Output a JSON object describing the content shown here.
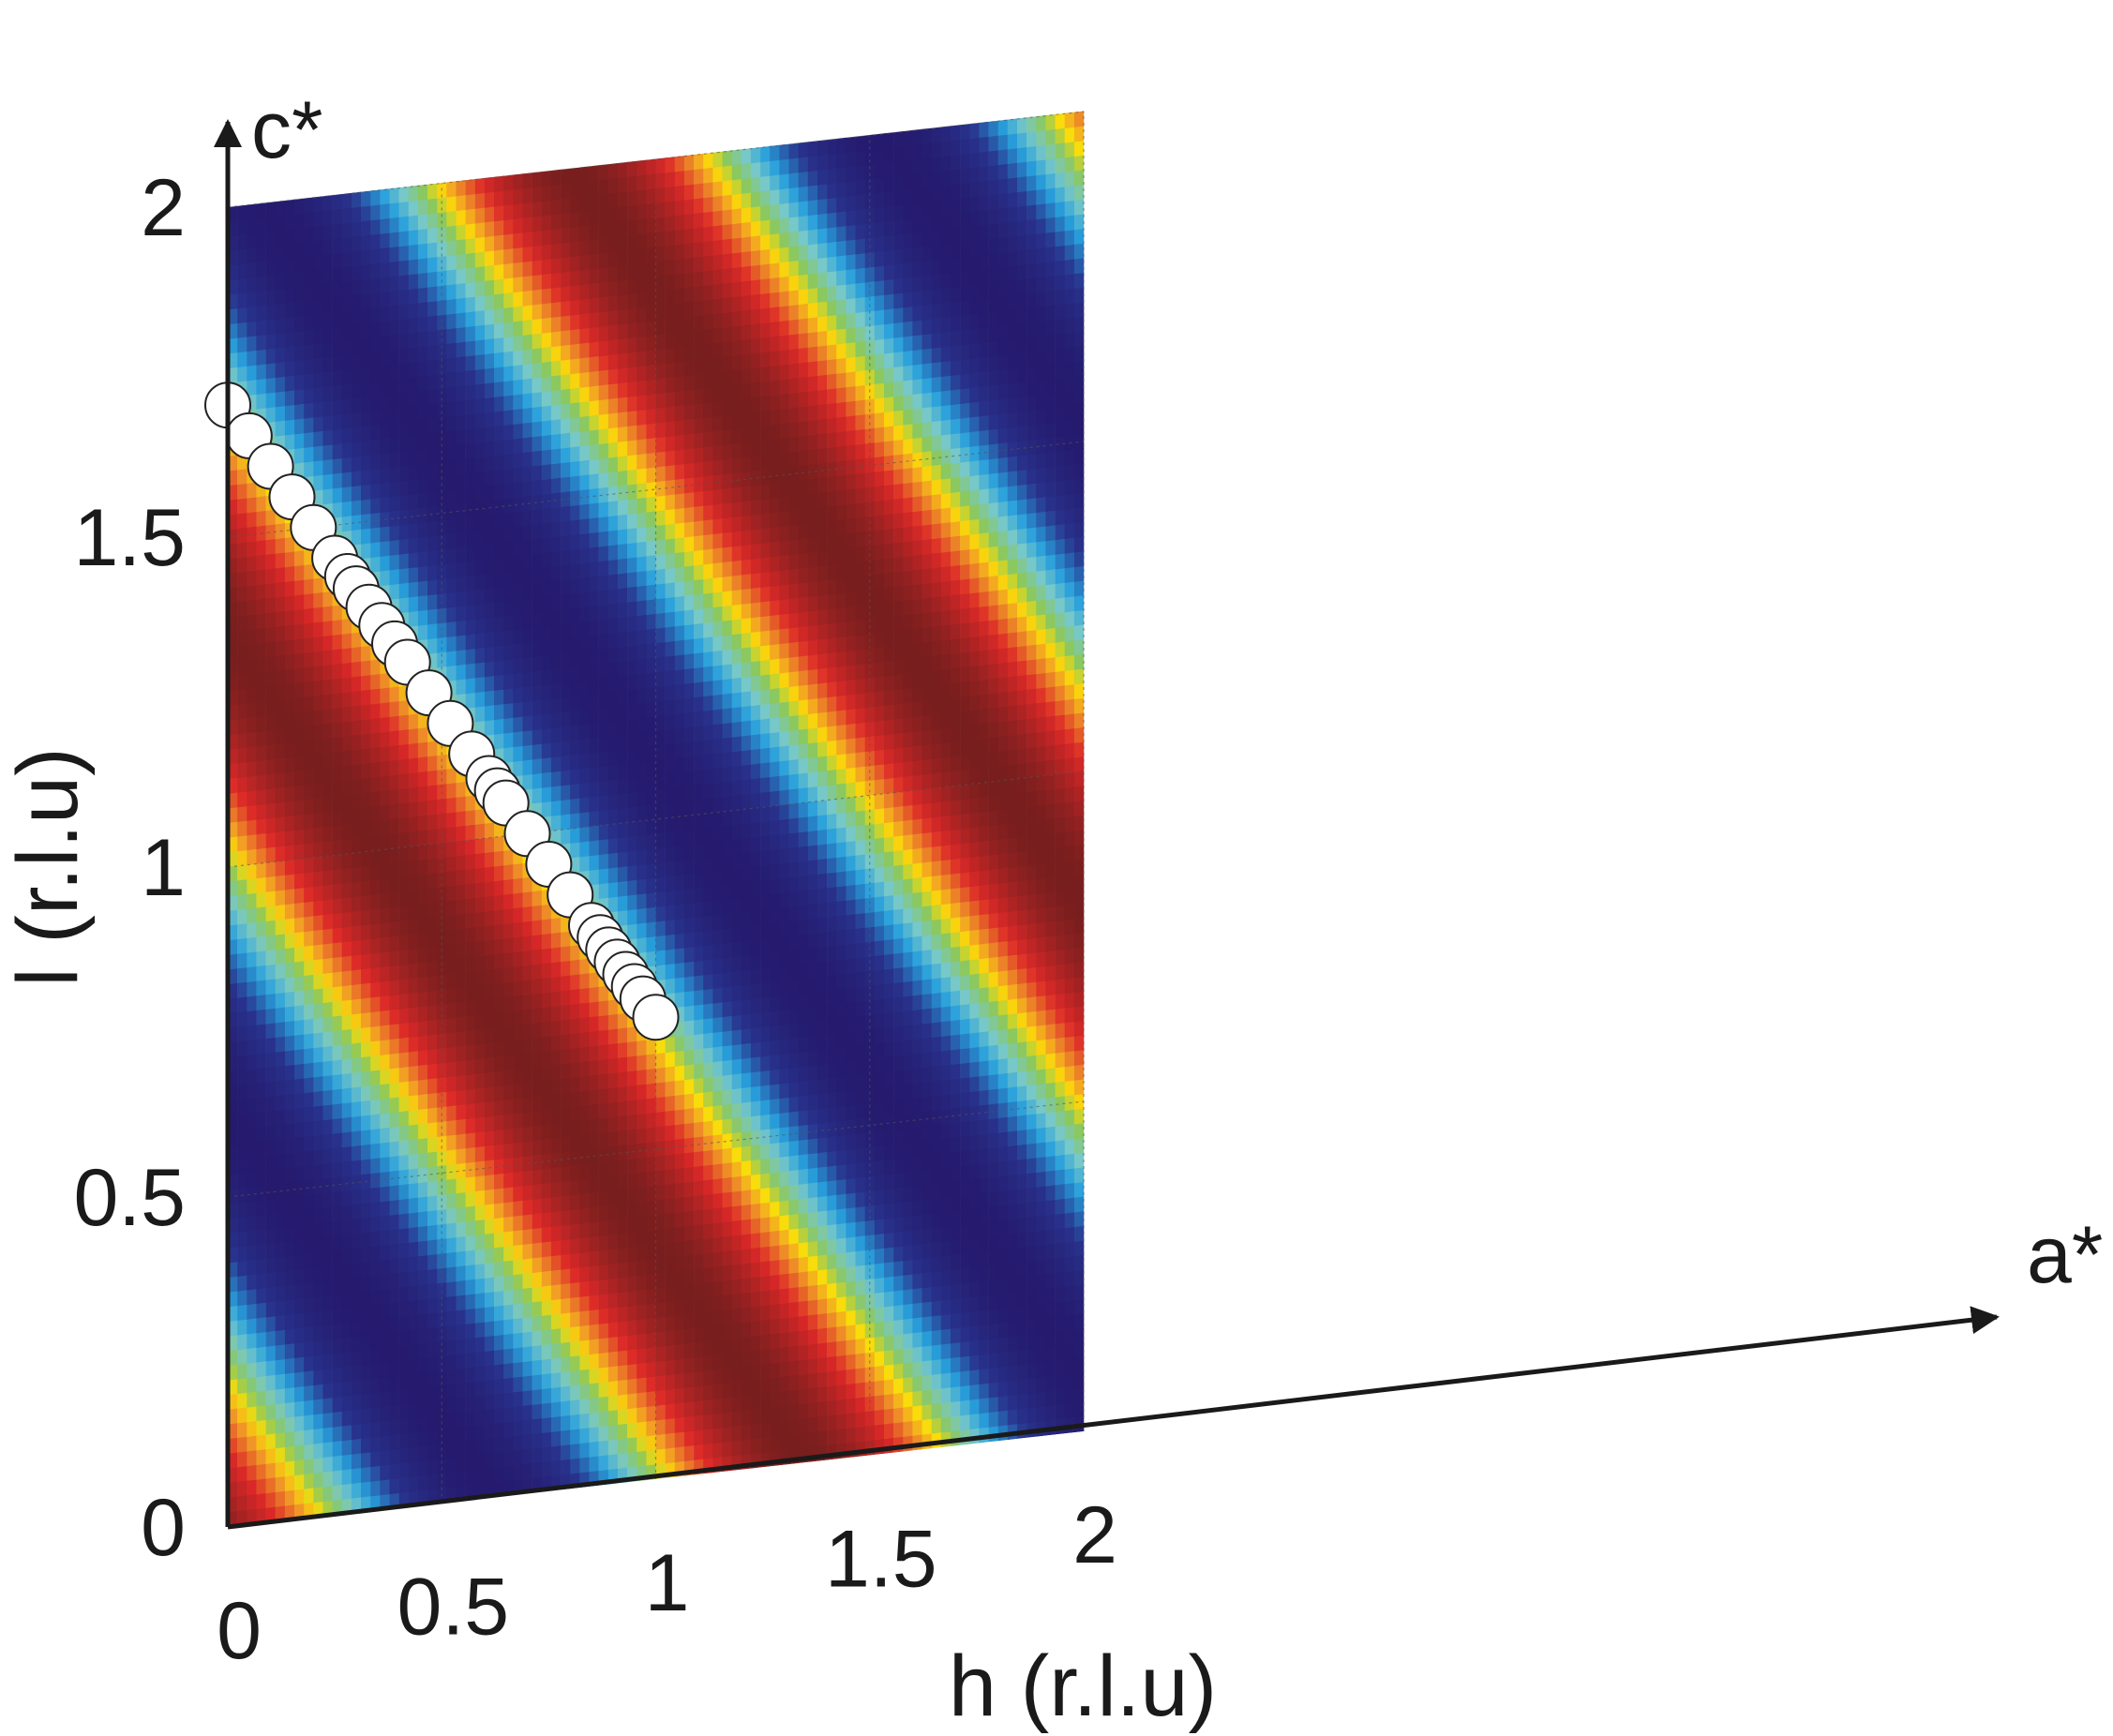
{
  "chart_data": {
    "type": "heatmap",
    "title": "",
    "xlabel": "h (r.l.u)",
    "ylabel": "l (r.l.u)",
    "x_axis_name": "a*",
    "y_axis_name": "c*",
    "xlim": [
      0,
      2
    ],
    "ylim": [
      0,
      2
    ],
    "x_ticks": [
      "0",
      "0.5",
      "1",
      "1.5",
      "2"
    ],
    "y_ticks": [
      "0",
      "0.5",
      "1",
      "1.5",
      "2"
    ],
    "grid": true,
    "colormap": "jet",
    "field_description": "periodic ridges along h + l = constant, maximum at h + l = 1.35",
    "field_period": 1.45,
    "field_peak": 1.35,
    "colors": {
      "grid": "#555555",
      "axis": "#1a1a1a",
      "marker_fill": "#ffffff",
      "marker_edge": "#222222"
    },
    "series": [
      {
        "type": "scatter",
        "marker": "open-circle",
        "x": [
          0.0,
          0.05,
          0.1,
          0.15,
          0.2,
          0.25,
          0.28,
          0.3,
          0.33,
          0.36,
          0.39,
          0.42,
          0.47,
          0.52,
          0.57,
          0.61,
          0.63,
          0.65,
          0.7,
          0.75,
          0.8,
          0.85,
          0.87,
          0.89,
          0.91,
          0.93,
          0.95,
          0.97,
          1.0
        ],
        "y": [
          1.7,
          1.65,
          1.6,
          1.55,
          1.5,
          1.45,
          1.42,
          1.4,
          1.37,
          1.34,
          1.31,
          1.28,
          1.23,
          1.18,
          1.13,
          1.09,
          1.07,
          1.05,
          1.0,
          0.95,
          0.9,
          0.85,
          0.83,
          0.81,
          0.79,
          0.77,
          0.75,
          0.73,
          0.7
        ]
      }
    ]
  }
}
